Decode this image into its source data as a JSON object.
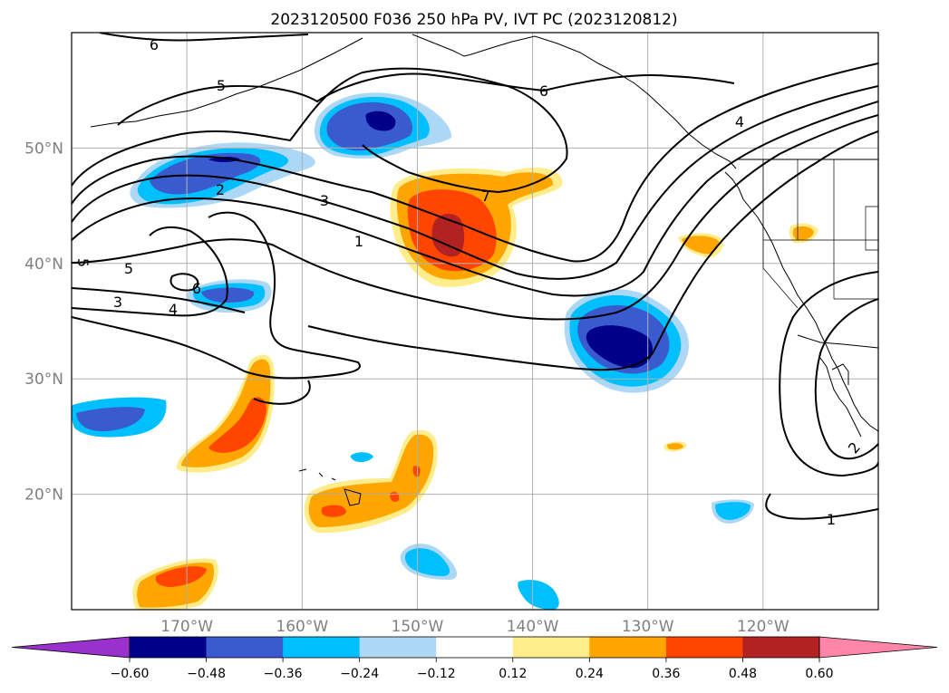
{
  "chart_data": {
    "type": "map-contour",
    "title": "2023120500 F036 250 hPa PV, IVT PC (2023120812)",
    "lon_range": [
      -180,
      -110
    ],
    "lat_range": [
      10,
      60
    ],
    "lon_ticks": [
      -170,
      -160,
      -150,
      -140,
      -130,
      -120
    ],
    "lon_tick_labels": [
      "170°W",
      "160°W",
      "150°W",
      "140°W",
      "130°W",
      "120°W"
    ],
    "lat_ticks": [
      20,
      30,
      40,
      50
    ],
    "lat_tick_labels": [
      "20°N",
      "30°N",
      "40°N",
      "50°N"
    ],
    "grid": true,
    "colorbar": {
      "orientation": "horizontal",
      "extend": "both",
      "ticks": [
        "−0.60",
        "−0.48",
        "−0.36",
        "−0.24",
        "−0.12",
        "0.12",
        "0.24",
        "0.36",
        "0.48",
        "0.60"
      ],
      "levels": [
        -0.6,
        -0.48,
        -0.36,
        -0.24,
        -0.12,
        0.12,
        0.24,
        0.36,
        0.48,
        0.6
      ],
      "colors": [
        "#9932cc",
        "#00008b",
        "#3a5bcf",
        "#00bfff",
        "#add8f5",
        "#ffffff",
        "#ffec8b",
        "#ffa500",
        "#ff4500",
        "#b22222",
        "#ff85a9"
      ]
    },
    "contour_labels": [
      "6",
      "5",
      "6",
      "4",
      "3",
      "2",
      "7",
      "1",
      "5",
      "5",
      "3",
      "4",
      "6",
      "1",
      "2"
    ]
  }
}
